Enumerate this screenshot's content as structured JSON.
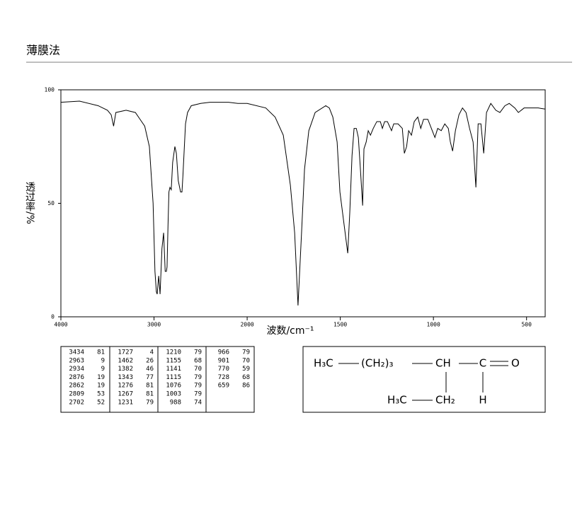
{
  "chart_data": {
    "type": "line",
    "title": "薄膜法",
    "x_label": "波数/cm⁻¹",
    "y_label": "透过率/%",
    "xlim": [
      4000,
      400
    ],
    "x_scale_break": 2000,
    "xticks": [
      4000,
      3000,
      2000,
      1500,
      1000,
      500
    ],
    "ylim": [
      0,
      100
    ],
    "yticks": [
      0,
      50,
      100
    ],
    "color": "#000000",
    "x": [
      4000,
      3800,
      3600,
      3500,
      3460,
      3434,
      3410,
      3300,
      3200,
      3150,
      3100,
      3050,
      3010,
      2990,
      2975,
      2966,
      2950,
      2935,
      2915,
      2897,
      2880,
      2867,
      2860,
      2850,
      2840,
      2829,
      2815,
      2800,
      2776,
      2760,
      2740,
      2715,
      2700,
      2690,
      2662,
      2640,
      2600,
      2500,
      2400,
      2200,
      2100,
      2000,
      1900,
      1850,
      1806,
      1768,
      1745,
      1727,
      1708,
      1692,
      1669,
      1635,
      1578,
      1559,
      1540,
      1517,
      1502,
      1460,
      1449,
      1437,
      1426,
      1414,
      1403,
      1392,
      1380,
      1373,
      1361,
      1350,
      1338,
      1323,
      1304,
      1285,
      1274,
      1262,
      1247,
      1236,
      1225,
      1213,
      1190,
      1167,
      1156,
      1144,
      1133,
      1118,
      1103,
      1084,
      1068,
      1053,
      1030,
      1011,
      992,
      977,
      958,
      939,
      920,
      909,
      897,
      882,
      863,
      844,
      825,
      806,
      787,
      772,
      760,
      745,
      730,
      715,
      692,
      665,
      643,
      616,
      593,
      563,
      544,
      513,
      475,
      437,
      400
    ],
    "values": [
      94.5,
      95,
      93,
      91,
      89,
      84,
      90,
      91,
      90,
      87,
      84,
      75,
      50,
      20,
      11,
      10,
      18,
      10,
      30,
      37,
      20,
      20,
      22,
      40,
      55,
      57,
      56,
      68,
      75,
      72,
      60,
      55,
      55,
      62,
      85,
      90,
      93,
      94,
      94.5,
      94.5,
      94,
      94,
      92,
      88,
      80,
      58,
      37,
      5,
      37,
      65,
      82,
      90,
      93,
      92,
      88,
      77,
      55,
      28,
      46,
      71,
      83,
      83,
      79,
      65,
      49,
      74,
      77,
      82,
      80,
      83,
      86,
      86,
      83,
      86,
      86,
      84,
      82,
      85,
      85,
      83,
      72,
      75,
      82,
      80,
      86,
      88,
      83,
      87,
      87,
      83,
      79,
      83,
      82,
      85,
      83,
      77,
      73,
      82,
      89,
      92,
      90,
      83,
      77,
      57,
      85,
      85,
      72,
      90,
      94,
      91,
      90,
      93,
      94,
      92,
      90,
      92,
      92,
      92,
      91.5
    ]
  },
  "peak_table": {
    "rows": [
      [
        "3434",
        "81"
      ],
      [
        "2963",
        "9"
      ],
      [
        "2934",
        "9"
      ],
      [
        "2876",
        "19"
      ],
      [
        "2862",
        "19"
      ],
      [
        "2809",
        "53"
      ],
      [
        "2702",
        "52"
      ],
      [
        "1727",
        "4"
      ],
      [
        "1462",
        "26"
      ],
      [
        "1382",
        "46"
      ],
      [
        "1343",
        "77"
      ],
      [
        "1276",
        "81"
      ],
      [
        "1267",
        "81"
      ],
      [
        "1231",
        "79"
      ],
      [
        "1210",
        "79"
      ],
      [
        "1155",
        "68"
      ],
      [
        "1141",
        "70"
      ],
      [
        "1115",
        "79"
      ],
      [
        "1076",
        "79"
      ],
      [
        "1003",
        "79"
      ],
      [
        "988",
        "74"
      ],
      [
        "966",
        "79"
      ],
      [
        "901",
        "70"
      ],
      [
        "770",
        "59"
      ],
      [
        "728",
        "68"
      ],
      [
        "659",
        "86"
      ]
    ]
  },
  "structure": {
    "nodes": [
      {
        "label": "H₃C"
      },
      {
        "label": "(CH₂)₃"
      },
      {
        "label": "CH"
      },
      {
        "label": "C"
      },
      {
        "label": "O"
      },
      {
        "label": "H₃C"
      },
      {
        "label": "CH₂"
      },
      {
        "label": "H"
      }
    ]
  }
}
